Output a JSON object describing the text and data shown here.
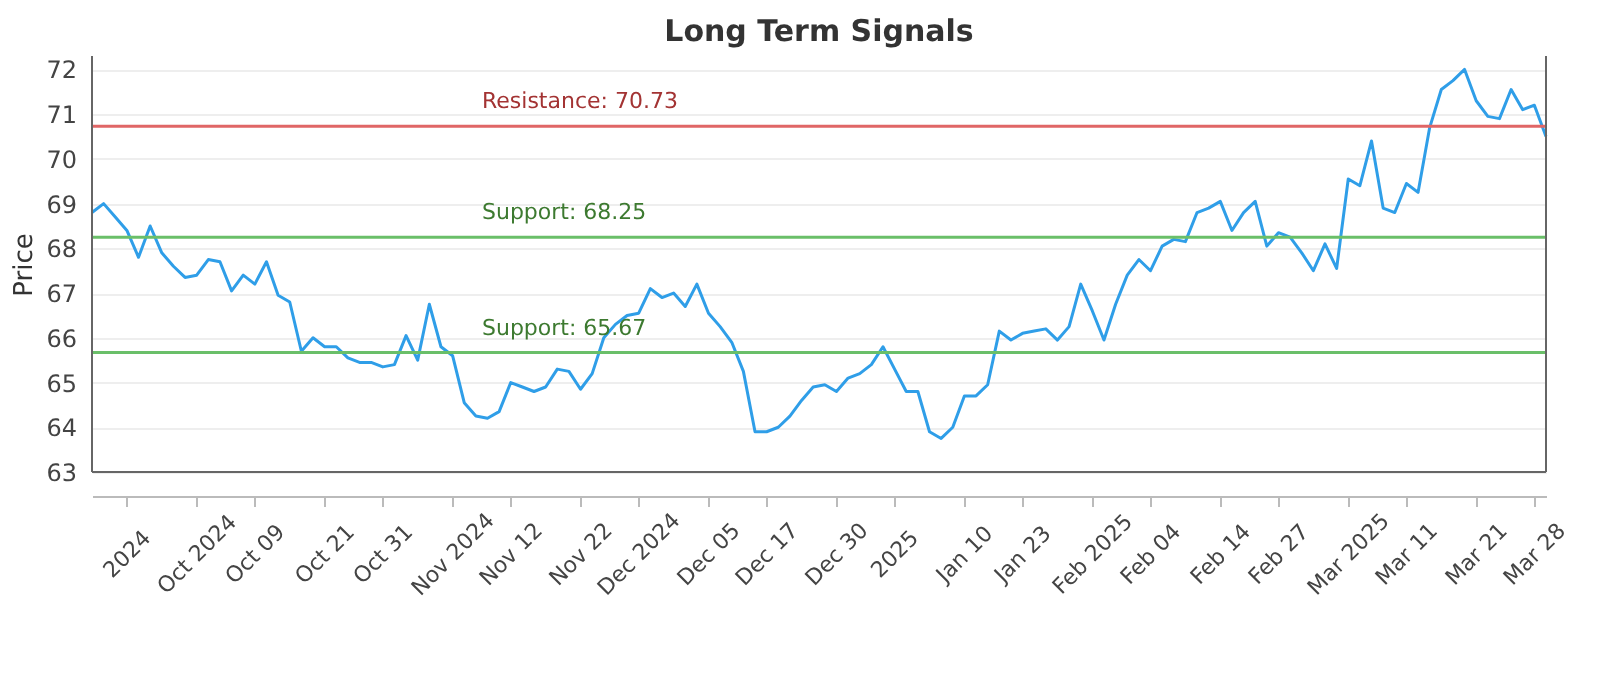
{
  "chart_data": {
    "type": "line",
    "title": "Long Term Signals",
    "ylabel": "Price",
    "categories": [
      null,
      null,
      null,
      "2024",
      null,
      null,
      null,
      null,
      null,
      "Oct 2024",
      null,
      null,
      null,
      null,
      "Oct 09",
      null,
      null,
      null,
      null,
      null,
      "Oct 21",
      null,
      null,
      null,
      null,
      "Oct 31",
      null,
      null,
      null,
      null,
      null,
      "Nov 2024",
      null,
      null,
      null,
      null,
      "Nov 12",
      null,
      null,
      null,
      null,
      null,
      "Nov 22",
      null,
      null,
      null,
      null,
      "Dec 2024",
      null,
      null,
      null,
      null,
      null,
      "Dec 05",
      null,
      null,
      null,
      null,
      "Dec 17",
      null,
      null,
      null,
      null,
      null,
      "Dec 30",
      null,
      null,
      null,
      null,
      "2025",
      null,
      null,
      null,
      null,
      null,
      "Jan 10",
      null,
      null,
      null,
      null,
      "Jan 23",
      null,
      null,
      null,
      null,
      null,
      "Feb 2025",
      null,
      null,
      null,
      null,
      "Feb 04",
      null,
      null,
      null,
      null,
      null,
      "Feb 14",
      null,
      null,
      null,
      null,
      "Feb 27",
      null,
      null,
      null,
      null,
      null,
      "Mar 2025",
      null,
      null,
      null,
      null,
      "Mar 11",
      null,
      null,
      null,
      null,
      null,
      "Mar 21",
      null,
      null,
      null,
      null,
      "Mar 28",
      null
    ],
    "series": [
      {
        "color": "#2f9ee8",
        "values": [
          68.8,
          69.0,
          68.7,
          68.4,
          67.8,
          68.5,
          67.9,
          67.6,
          67.35,
          67.4,
          67.75,
          67.7,
          67.05,
          67.4,
          67.2,
          67.7,
          66.95,
          66.8,
          65.7,
          66.0,
          65.8,
          65.8,
          65.55,
          65.45,
          65.45,
          65.35,
          65.4,
          66.05,
          65.5,
          66.75,
          65.8,
          65.6,
          64.55,
          64.25,
          64.2,
          64.35,
          65.0,
          64.9,
          64.8,
          64.9,
          65.3,
          65.25,
          64.85,
          65.2,
          66.0,
          66.3,
          66.5,
          66.55,
          67.1,
          66.9,
          67.0,
          66.7,
          67.2,
          66.55,
          66.25,
          65.9,
          65.25,
          63.9,
          63.9,
          64.0,
          64.25,
          64.6,
          64.9,
          64.95,
          64.8,
          65.1,
          65.2,
          65.4,
          65.8,
          65.3,
          64.8,
          64.8,
          63.9,
          63.75,
          64.0,
          64.7,
          64.7,
          64.95,
          66.15,
          65.95,
          66.1,
          66.15,
          66.2,
          65.95,
          66.25,
          67.2,
          66.6,
          65.95,
          66.75,
          67.4,
          67.75,
          67.5,
          68.05,
          68.2,
          68.15,
          68.8,
          68.9,
          69.05,
          68.4,
          68.8,
          69.05,
          68.05,
          68.35,
          68.25,
          67.9,
          67.5,
          68.1,
          67.55,
          69.55,
          69.4,
          70.4,
          68.9,
          68.8,
          69.45,
          69.25,
          70.7,
          71.55,
          71.75,
          72.0,
          71.3,
          70.95,
          70.9,
          71.55,
          71.1,
          71.2,
          70.5
        ]
      }
    ],
    "ylim": [
      63,
      72.3
    ],
    "yticks": [
      63,
      64,
      65,
      66,
      67,
      68,
      69,
      70,
      71,
      72
    ],
    "grid": "y",
    "marker": "none",
    "line_style": "solid",
    "ref_lines": [
      {
        "axis": "y",
        "value": 70.73,
        "label": "Resistance: 70.73",
        "color": "#e06666"
      },
      {
        "axis": "y",
        "value": 68.25,
        "label": "Support: 68.25",
        "color": "#6abf69"
      },
      {
        "axis": "y",
        "value": 65.67,
        "label": "Support: 65.67",
        "color": "#6abf69"
      }
    ]
  }
}
